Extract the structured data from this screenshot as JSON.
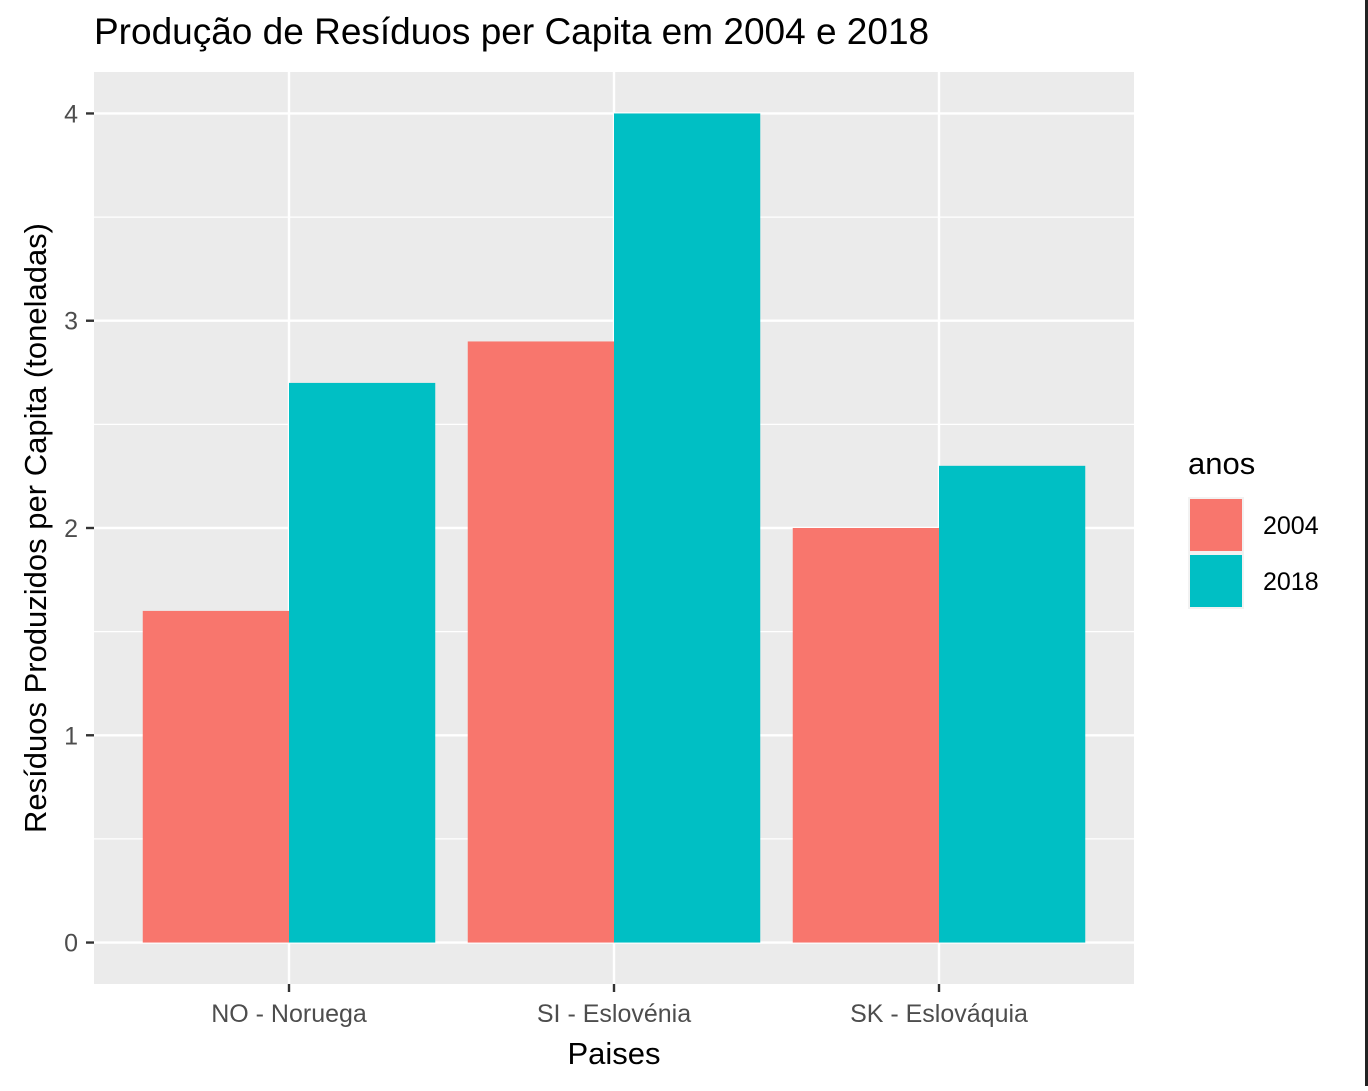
{
  "chart_data": {
    "type": "bar",
    "title": "Produção de Resíduos per Capita em 2004 e 2018",
    "xlabel": "Paises",
    "ylabel": "Resíduos Produzidos per Capita (toneladas)",
    "categories": [
      "NO - Noruega",
      "SI - Eslovénia",
      "SK - Eslováquia"
    ],
    "series": [
      {
        "name": "2004",
        "values": [
          1.6,
          2.9,
          2.0
        ],
        "color": "#F8766D"
      },
      {
        "name": "2018",
        "values": [
          2.7,
          4.0,
          2.3
        ],
        "color": "#00BFC4"
      }
    ],
    "ylim": [
      -0.2,
      4.2
    ],
    "yticks": [
      0,
      1,
      2,
      3,
      4
    ],
    "ytick_labels": [
      "0",
      "1",
      "2",
      "3",
      "4"
    ],
    "legend": {
      "title": "anos",
      "position": "right"
    },
    "grid": true,
    "panel_background": "#EBEBEB",
    "grid_color": "#FFFFFF"
  }
}
